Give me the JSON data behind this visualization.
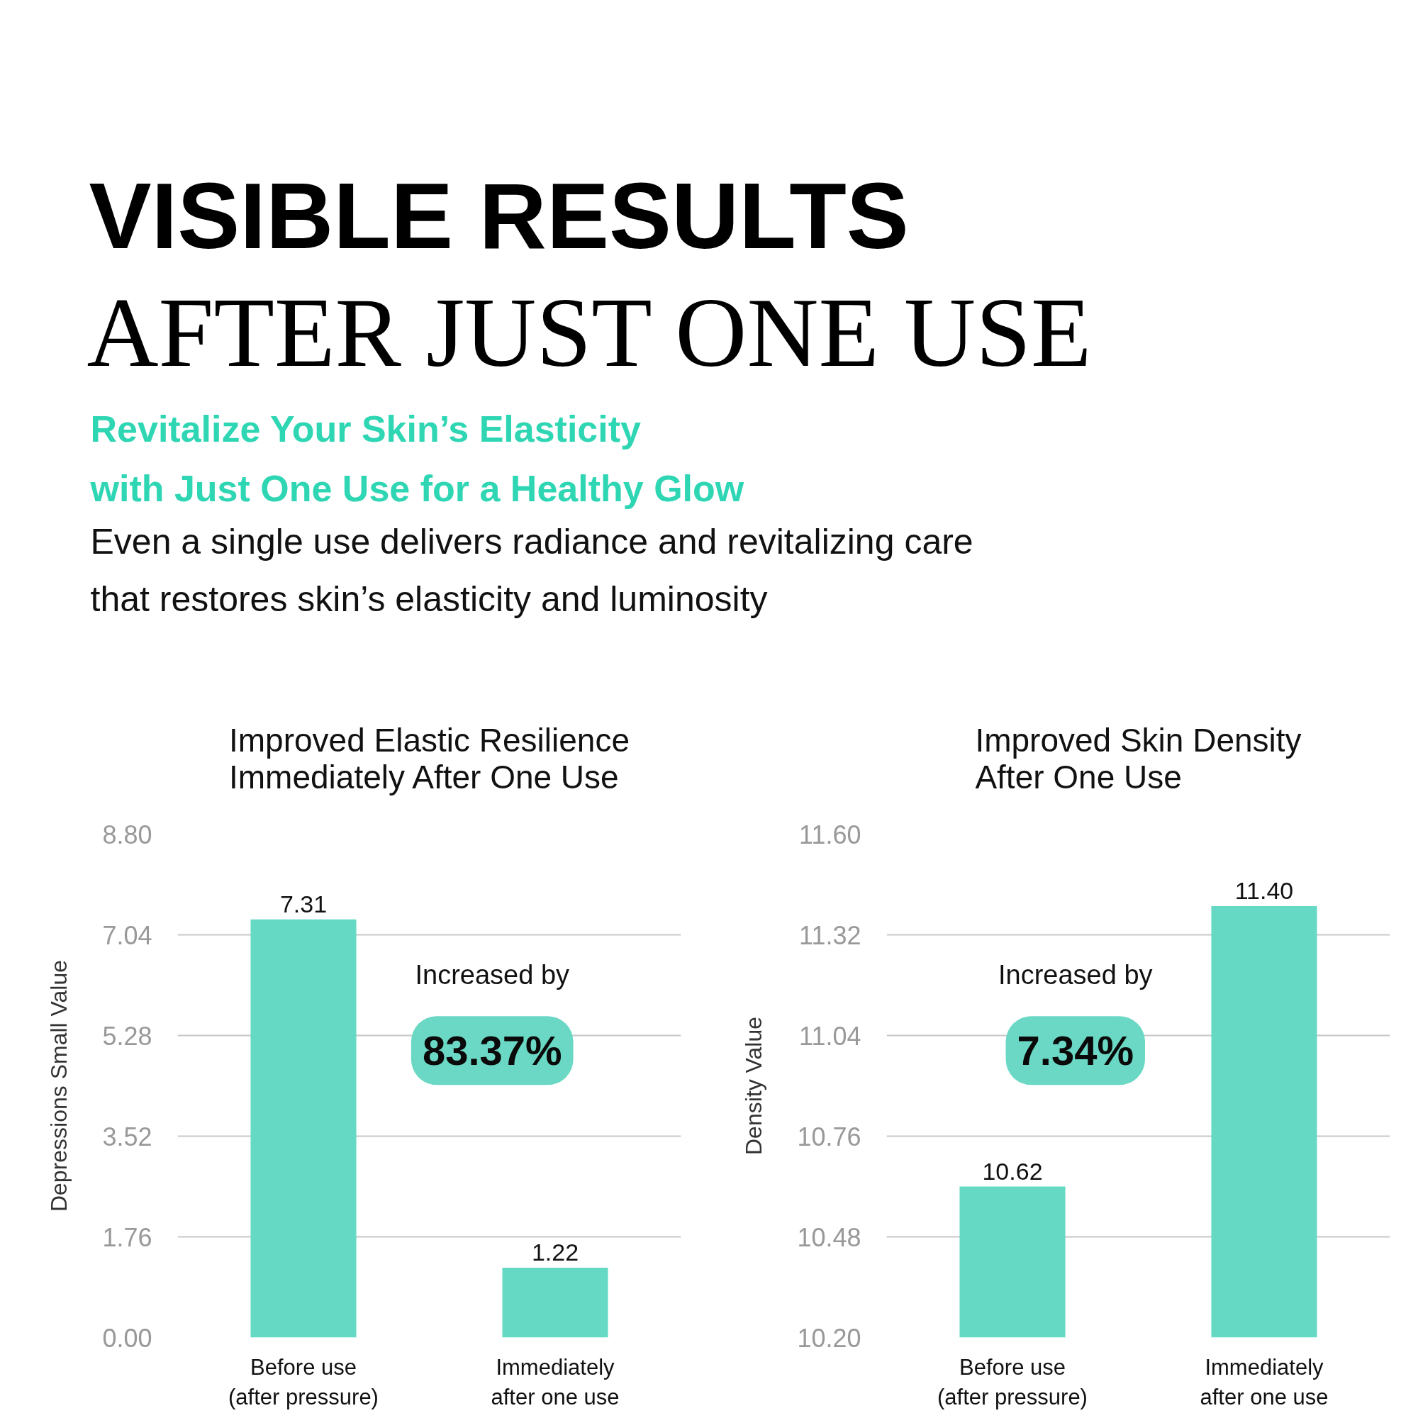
{
  "chart_data": [
    {
      "type": "other",
      "title": "VISIBLE RESULTS",
      "subtitle": "AFTER JUST ONE USE",
      "annotations": [
        "Revitalize Your Skin’s Elasticity with Just One Use for a Healthy Glow",
        "Even a single use delivers radiance and revitalizing care that restores skin’s elasticity and luminosity"
      ]
    },
    {
      "type": "bar",
      "title": "Improved Elastic Resilience Immediately After One Use",
      "ylabel": "Depressions Small Value",
      "categories": [
        "Before use (after pressure)",
        "Immediately after one use"
      ],
      "values": [
        7.31,
        1.22
      ],
      "color": "#66d9c4",
      "ylim": [
        0,
        8.8
      ],
      "yticks": [
        {
          "value": 0,
          "label": "0.00"
        },
        1.76,
        3.52,
        5.28,
        7.04,
        {
          "value": 8.8,
          "label": "8.80"
        }
      ],
      "grid": "y",
      "data_labels": true,
      "annotations": [
        "Increased by",
        "83.37%"
      ]
    },
    {
      "type": "bar",
      "title": "Improved Skin Density After One Use",
      "ylabel": "Density Value",
      "categories": [
        "Before use (after pressure)",
        "Immediately after one use"
      ],
      "values": [
        10.62,
        11.4
      ],
      "value_labels": [
        "10.62",
        "11.40"
      ],
      "color": "#66d9c4",
      "ylim": [
        10.2,
        11.6
      ],
      "yticks": [
        {
          "value": 10.2,
          "label": "10.20"
        },
        10.48,
        10.76,
        11.04,
        11.32,
        {
          "value": 11.6,
          "label": "11.60"
        }
      ],
      "grid": "y",
      "annotations": [
        "Increased by",
        "7.34%"
      ]
    }
  ]
}
